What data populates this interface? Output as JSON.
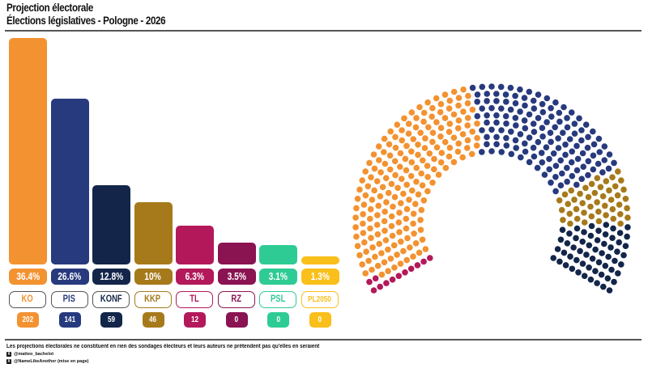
{
  "header": {
    "title": "Projection électorale",
    "subtitle": "Élections législatives - Pologne - 2026"
  },
  "chart_data": [
    {
      "type": "bar",
      "title": "Projection électorale",
      "subtitle": "Élections législatives - Pologne - 2026",
      "categories": [
        "KO",
        "PIS",
        "KONF",
        "KKP",
        "TL",
        "RZ",
        "PSL",
        "PL2050"
      ],
      "values": [
        36.4,
        26.6,
        12.8,
        10,
        6.3,
        3.5,
        3.1,
        1.3
      ],
      "value_labels": [
        "36.4%",
        "26.6%",
        "12.8%",
        "10%",
        "6.3%",
        "3.5%",
        "3.1%",
        "1.3%"
      ],
      "seats": [
        202,
        141,
        59,
        46,
        12,
        0,
        0,
        0
      ],
      "colors": [
        "#F39231",
        "#283A7E",
        "#13264A",
        "#A67A1B",
        "#B3195A",
        "#8A1352",
        "#2ECC94",
        "#F9BF1A"
      ],
      "unit": "%",
      "grid": false,
      "xlabel": "",
      "ylabel": ""
    },
    {
      "type": "hemicycle",
      "total_seats": 460,
      "rows": 10,
      "order_left_to_right": [
        "TL",
        "KO",
        "PIS",
        "KKP",
        "KONF"
      ],
      "seats": {
        "TL": 12,
        "KO": 202,
        "PIS": 141,
        "KKP": 46,
        "KONF": 59
      },
      "colors": {
        "TL": "#B3195A",
        "KO": "#F39231",
        "PIS": "#283A7E",
        "KKP": "#A67A1B",
        "KONF": "#13264A"
      }
    }
  ],
  "footer": {
    "disclaimer": "Les projections électorales ne constituent en rien des sondages électeurs et leurs auteurs ne prétendent pas qu'elles en seraient",
    "credit1": "@matteo_bachelot",
    "credit2": "@NameLikeAnother (mise en page)",
    "credit_icon": "x-twitter-icon"
  }
}
